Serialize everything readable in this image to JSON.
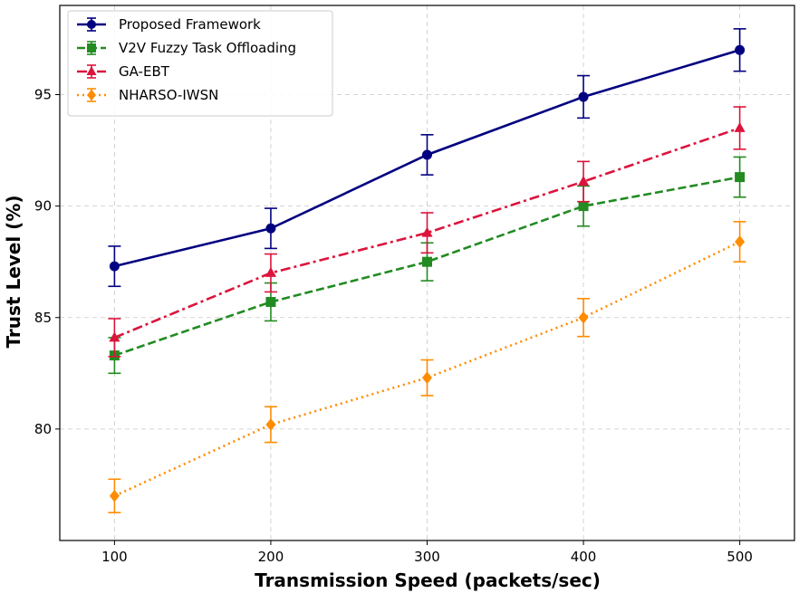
{
  "chart_data": {
    "type": "line",
    "title": "",
    "xlabel": "Transmission Speed (packets/sec)",
    "ylabel": "Trust Level (%)",
    "x": [
      100,
      200,
      300,
      400,
      500
    ],
    "xlim": [
      65,
      535
    ],
    "ylim": [
      75,
      99
    ],
    "xticks": [
      100,
      200,
      300,
      400,
      500
    ],
    "yticks": [
      80,
      85,
      90,
      95
    ],
    "grid": true,
    "legend_position": "top-left",
    "series": [
      {
        "name": "Proposed Framework",
        "color": "#000080",
        "marker": "circle",
        "linestyle": "solid",
        "values": [
          87.3,
          89.0,
          92.3,
          94.9,
          97.0
        ],
        "errors": [
          0.9,
          0.9,
          0.9,
          0.95,
          0.95
        ]
      },
      {
        "name": "V2V Fuzzy Task Offloading",
        "color": "#228B22",
        "marker": "square",
        "linestyle": "dashed",
        "values": [
          83.3,
          85.7,
          87.5,
          90.0,
          91.3
        ],
        "errors": [
          0.8,
          0.85,
          0.85,
          0.9,
          0.9
        ]
      },
      {
        "name": "GA-EBT",
        "color": "#DC143C",
        "marker": "triangle",
        "linestyle": "dashdot",
        "values": [
          84.1,
          87.0,
          88.8,
          91.1,
          93.5
        ],
        "errors": [
          0.85,
          0.85,
          0.9,
          0.9,
          0.95
        ]
      },
      {
        "name": "NHARSO-IWSN",
        "color": "#FF8C00",
        "marker": "diamond",
        "linestyle": "dotted",
        "values": [
          77.0,
          80.2,
          82.3,
          85.0,
          88.4
        ],
        "errors": [
          0.75,
          0.8,
          0.8,
          0.85,
          0.9
        ]
      }
    ]
  }
}
